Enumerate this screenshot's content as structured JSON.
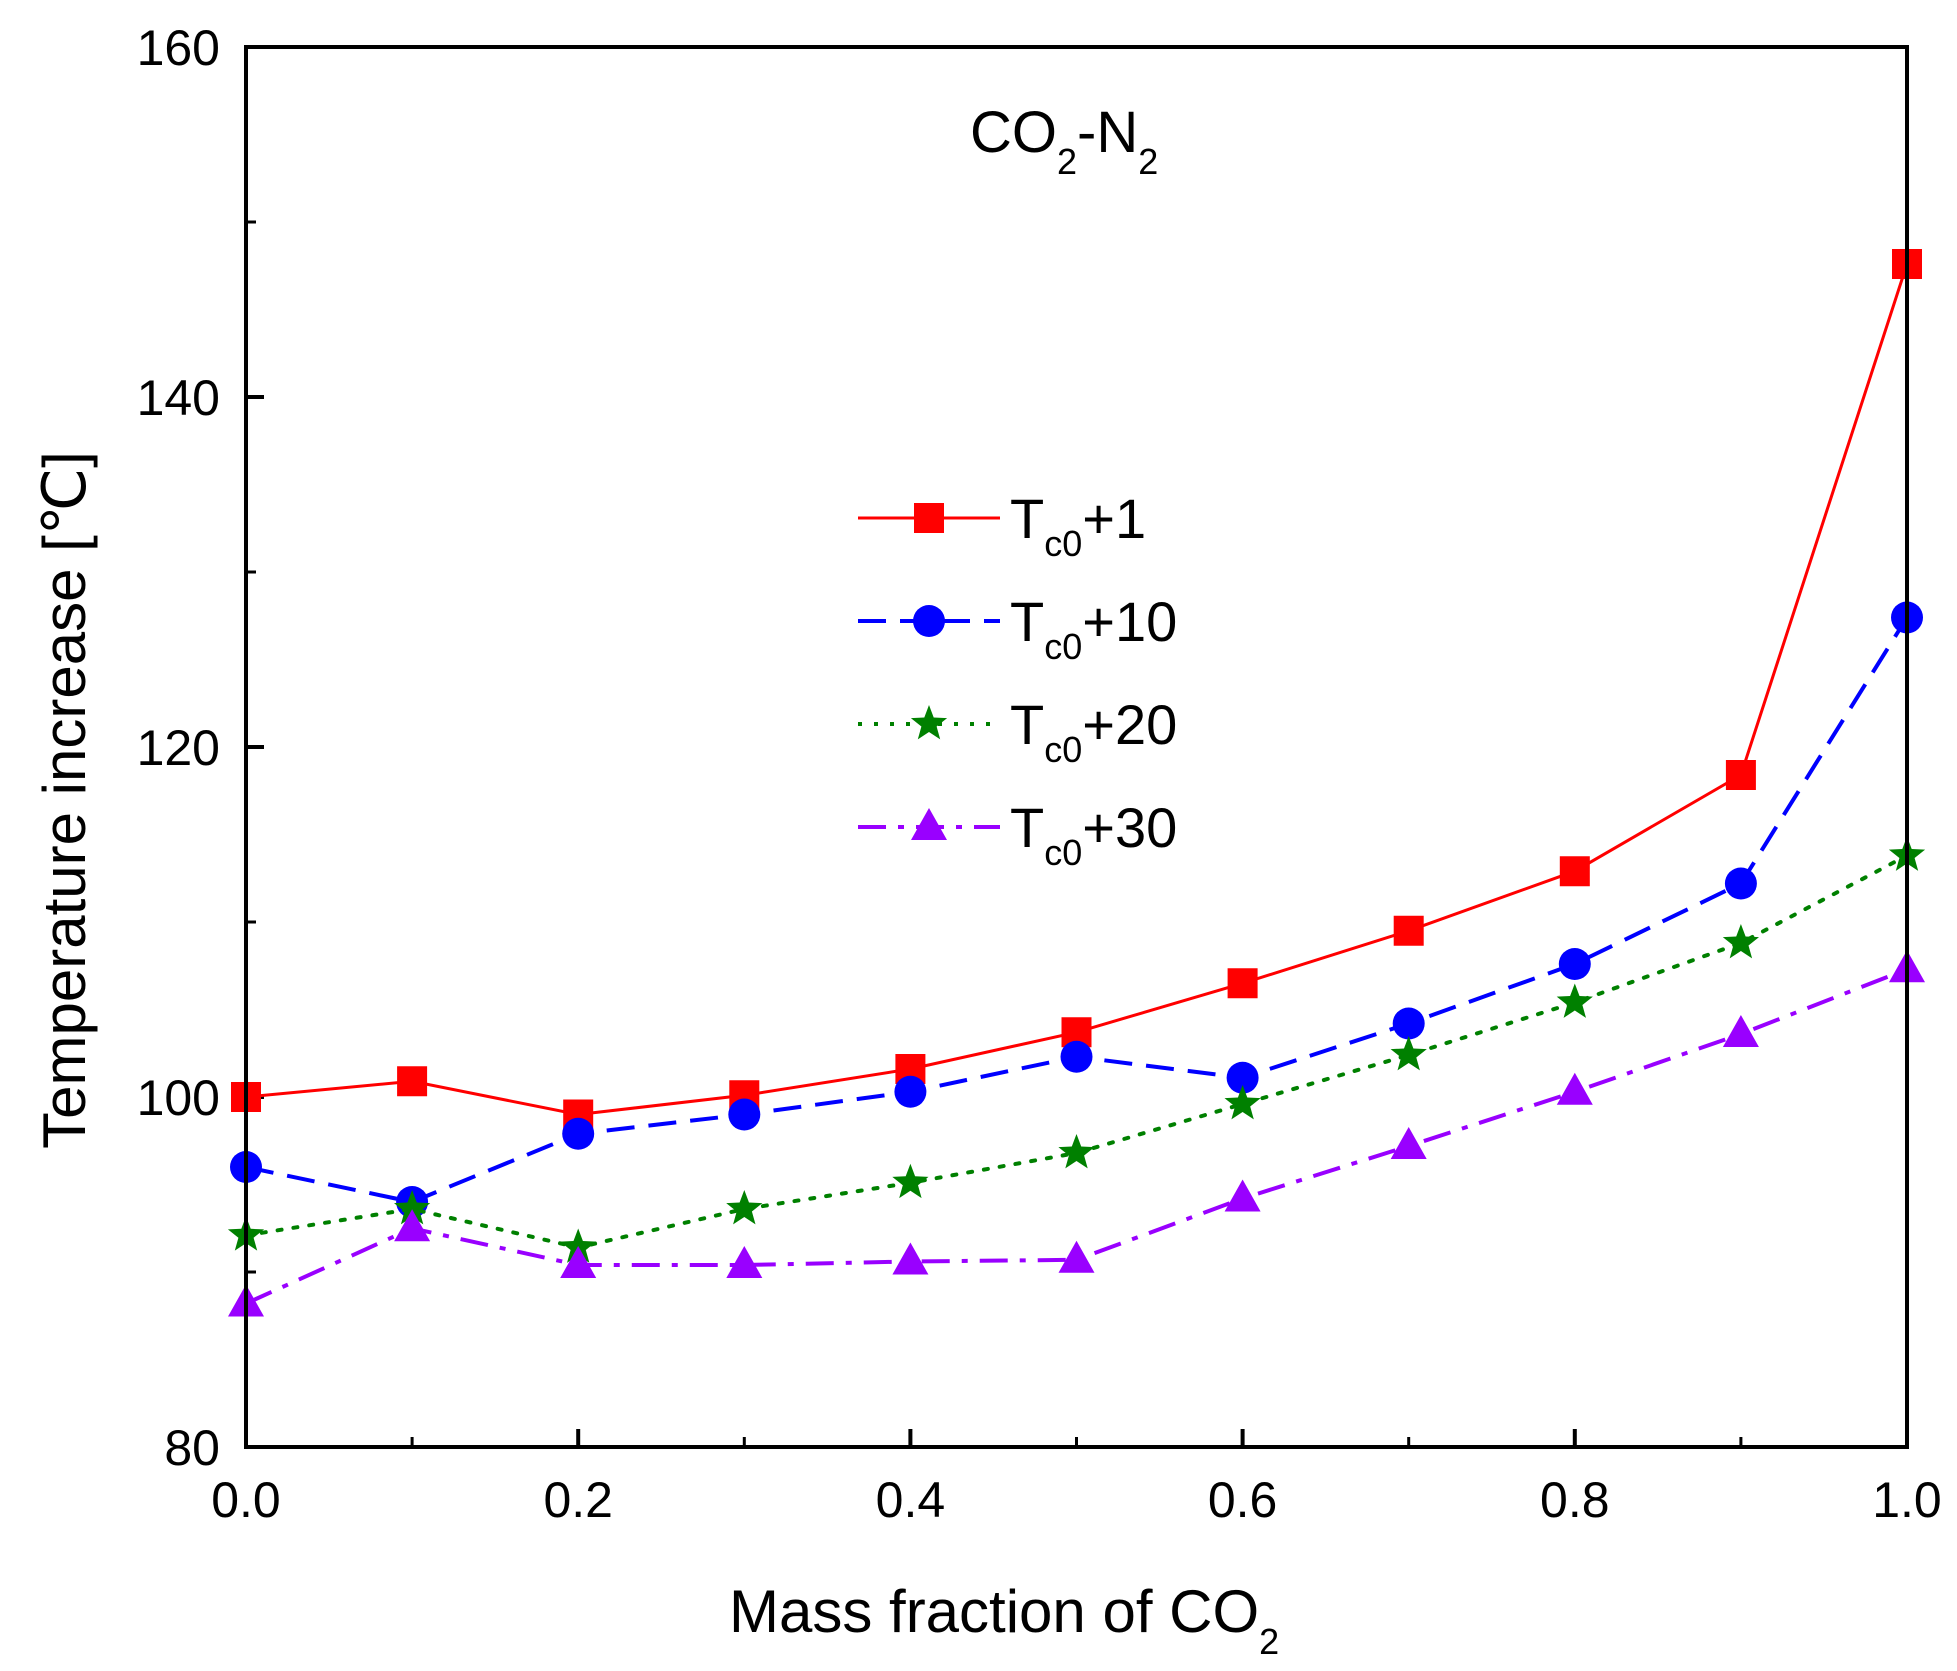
{
  "chart_data": {
    "type": "line",
    "title": "",
    "annotation": {
      "main": "CO",
      "sub1": "2",
      "mid": "-N",
      "sub2": "2"
    },
    "xlabel": {
      "main": "Mass fraction of CO",
      "sub": "2"
    },
    "ylabel": "Temperature increase [℃]",
    "xlim": [
      0.0,
      1.0
    ],
    "ylim": [
      80,
      160
    ],
    "xticks": [
      0.0,
      0.2,
      0.4,
      0.6,
      0.8,
      1.0
    ],
    "xtick_labels": [
      "0.0",
      "0.2",
      "0.4",
      "0.6",
      "0.8",
      "1.0"
    ],
    "yticks": [
      80,
      100,
      120,
      140,
      160
    ],
    "ytick_labels": [
      "80",
      "100",
      "120",
      "140",
      "160"
    ],
    "x": [
      0.0,
      0.1,
      0.2,
      0.3,
      0.4,
      0.5,
      0.6,
      0.7,
      0.8,
      0.9,
      1.0
    ],
    "legend_position": "center",
    "series": [
      {
        "name": "T",
        "sub": "c0",
        "suffix": "+1",
        "color": "#ff0000",
        "marker": "square",
        "line": "solid",
        "values": [
          100.0,
          100.9,
          99.0,
          100.1,
          101.6,
          103.7,
          106.5,
          109.5,
          112.9,
          118.4,
          147.6
        ]
      },
      {
        "name": "T",
        "sub": "c0",
        "suffix": "+10",
        "color": "#0000ff",
        "marker": "circle",
        "line": "dash",
        "values": [
          96.0,
          94.0,
          97.9,
          99.0,
          100.3,
          102.3,
          101.1,
          104.2,
          107.6,
          112.2,
          127.4
        ]
      },
      {
        "name": "T",
        "sub": "c0",
        "suffix": "+20",
        "color": "#008000",
        "marker": "star",
        "line": "dot",
        "values": [
          92.1,
          93.6,
          91.4,
          93.6,
          95.1,
          96.8,
          99.6,
          102.4,
          105.4,
          108.8,
          113.8
        ]
      },
      {
        "name": "T",
        "sub": "c0",
        "suffix": "+30",
        "color": "#9900ff",
        "marker": "triangle",
        "line": "dashdot",
        "values": [
          88.2,
          92.5,
          90.4,
          90.4,
          90.6,
          90.7,
          94.2,
          97.2,
          100.3,
          103.6,
          107.3
        ]
      }
    ]
  }
}
